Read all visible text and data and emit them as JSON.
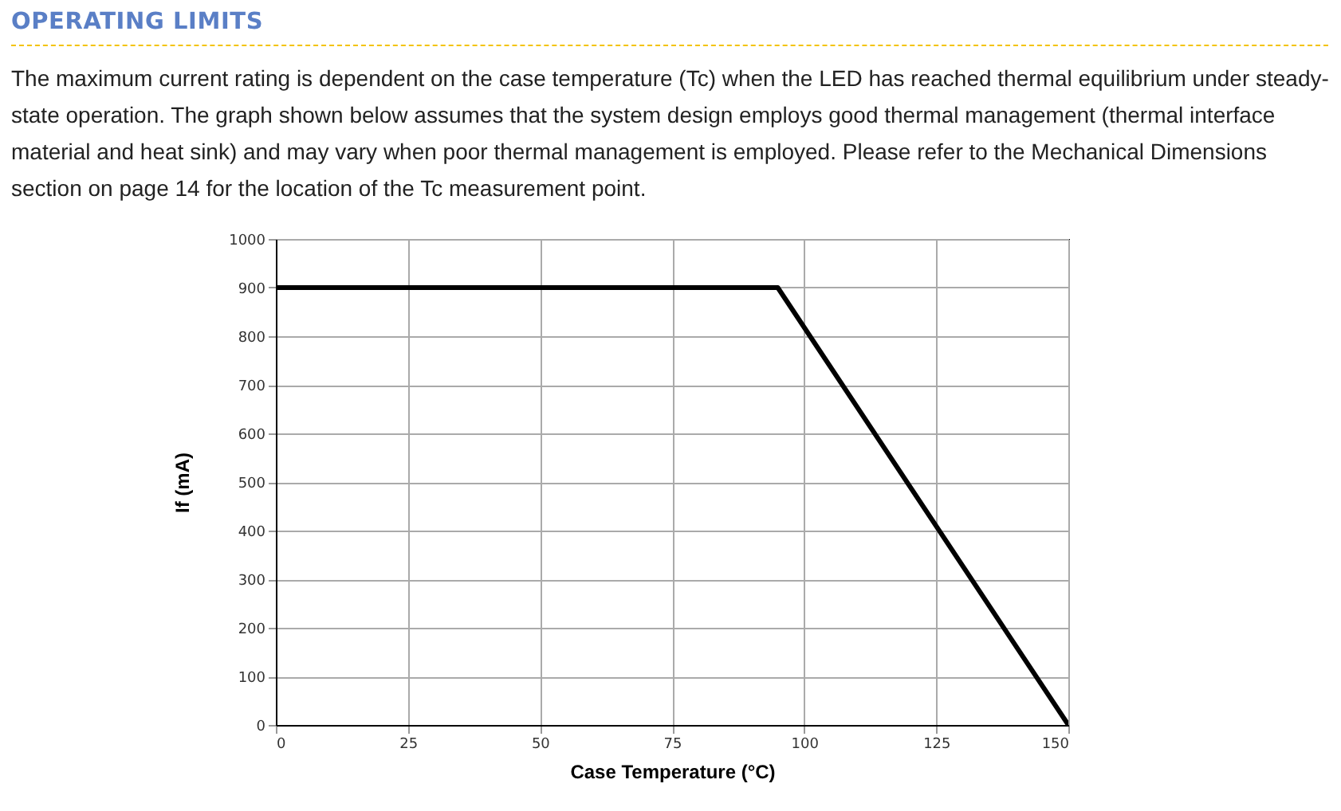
{
  "chart_data": {
    "type": "line",
    "title": "OPERATING LIMITS",
    "subtitle": "The maximum current rating is dependent on the case temperature (Tc) when the LED has reached thermal equilibrium under steady-state operation. The graph shown below assumes that the system design employs good thermal management (thermal interface material and heat sink) and may vary when poor thermal management is employed. Please refer to the Mechanical Dimensions section on page 14 for the location of the Tc measurement point.",
    "xlabel": "Case Temperature (°C)",
    "ylabel": "If (mA)",
    "x": [
      0,
      95,
      150
    ],
    "series": [
      {
        "color": "#000000",
        "values": [
          900,
          900,
          0
        ]
      }
    ],
    "xlim": [
      0,
      150
    ],
    "xticks": [
      0,
      25,
      50,
      75,
      100,
      125,
      150
    ],
    "ylim": [
      0,
      1000
    ],
    "yticks": [
      0,
      100,
      200,
      300,
      400,
      500,
      600,
      700,
      800,
      900,
      1000
    ],
    "grid": true,
    "marker": "none",
    "line_style": "solid"
  }
}
